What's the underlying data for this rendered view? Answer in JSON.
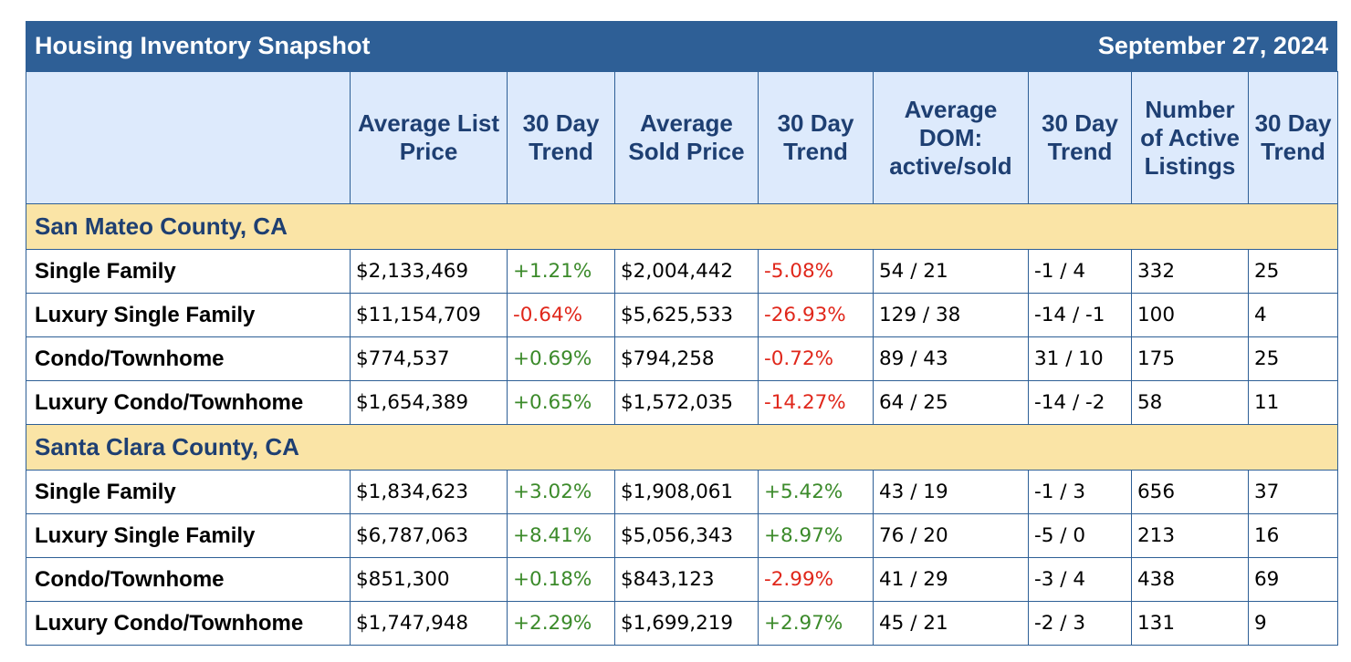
{
  "title": "Housing Inventory Snapshot",
  "date": "September 27, 2024",
  "colors": {
    "header_bar": "#2e5f96",
    "column_header_bg": "#ddeafc",
    "section_bg": "#fae4a6",
    "trend_up": "#3b8a2a",
    "trend_down": "#e0271b"
  },
  "columns": [
    "",
    "Average List Price",
    "30 Day Trend",
    "Average Sold Price",
    "30 Day Trend",
    "Average DOM: active/sold",
    "30 Day Trend",
    "Number of Active Listings",
    "30 Day Trend"
  ],
  "sections": [
    {
      "name": "San Mateo County, CA",
      "rows": [
        {
          "type": "Single Family",
          "avg_list_price": "$2,133,469",
          "list_trend": "+1.21%",
          "list_dir": "up",
          "avg_sold_price": "$2,004,442",
          "sold_trend": "-5.08%",
          "sold_dir": "down",
          "dom": "54 / 21",
          "dom_trend": "-1 / 4",
          "active_listings": "332",
          "listings_trend": "25"
        },
        {
          "type": "Luxury Single Family",
          "avg_list_price": "$11,154,709",
          "list_trend": "-0.64%",
          "list_dir": "down",
          "avg_sold_price": "$5,625,533",
          "sold_trend": "-26.93%",
          "sold_dir": "down",
          "dom": "129 / 38",
          "dom_trend": "-14 / -1",
          "active_listings": "100",
          "listings_trend": "4"
        },
        {
          "type": "Condo/Townhome",
          "avg_list_price": "$774,537",
          "list_trend": "+0.69%",
          "list_dir": "up",
          "avg_sold_price": "$794,258",
          "sold_trend": "-0.72%",
          "sold_dir": "down",
          "dom": "89 / 43",
          "dom_trend": "31 / 10",
          "active_listings": "175",
          "listings_trend": "25"
        },
        {
          "type": "Luxury Condo/Townhome",
          "avg_list_price": "$1,654,389",
          "list_trend": "+0.65%",
          "list_dir": "up",
          "avg_sold_price": "$1,572,035",
          "sold_trend": "-14.27%",
          "sold_dir": "down",
          "dom": "64 / 25",
          "dom_trend": "-14 / -2",
          "active_listings": "58",
          "listings_trend": "11"
        }
      ]
    },
    {
      "name": "Santa Clara County, CA",
      "rows": [
        {
          "type": "Single Family",
          "avg_list_price": "$1,834,623",
          "list_trend": "+3.02%",
          "list_dir": "up",
          "avg_sold_price": "$1,908,061",
          "sold_trend": "+5.42%",
          "sold_dir": "up",
          "dom": "43 / 19",
          "dom_trend": "-1 / 3",
          "active_listings": "656",
          "listings_trend": "37"
        },
        {
          "type": "Luxury Single Family",
          "avg_list_price": "$6,787,063",
          "list_trend": "+8.41%",
          "list_dir": "up",
          "avg_sold_price": "$5,056,343",
          "sold_trend": "+8.97%",
          "sold_dir": "up",
          "dom": "76 / 20",
          "dom_trend": "-5 / 0",
          "active_listings": "213",
          "listings_trend": "16"
        },
        {
          "type": "Condo/Townhome",
          "avg_list_price": "$851,300",
          "list_trend": "+0.18%",
          "list_dir": "up",
          "avg_sold_price": "$843,123",
          "sold_trend": "-2.99%",
          "sold_dir": "down",
          "dom": "41 / 29",
          "dom_trend": "-3 / 4",
          "active_listings": "438",
          "listings_trend": "69"
        },
        {
          "type": "Luxury Condo/Townhome",
          "avg_list_price": "$1,747,948",
          "list_trend": "+2.29%",
          "list_dir": "up",
          "avg_sold_price": "$1,699,219",
          "sold_trend": "+2.97%",
          "sold_dir": "up",
          "dom": "45 / 21",
          "dom_trend": "-2 / 3",
          "active_listings": "131",
          "listings_trend": "9"
        }
      ]
    }
  ]
}
